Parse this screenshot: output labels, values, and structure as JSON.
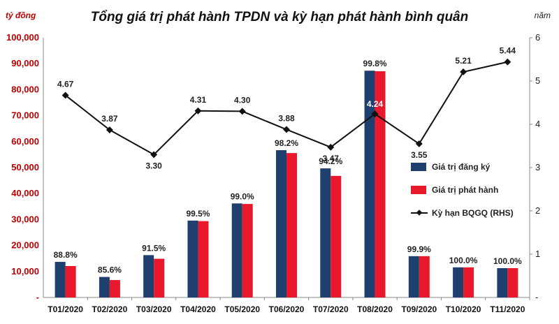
{
  "chart_data": {
    "type": "bar",
    "title": "Tổng giá trị phát hành TPDN và kỳ hạn phát hành bình quân",
    "y_left_unit": "tỷ đồng",
    "y_right_unit": "năm",
    "categories": [
      "T01/2020",
      "T02/2020",
      "T03/2020",
      "T04/2020",
      "T05/2020",
      "T06/2020",
      "T07/2020",
      "T08/2020",
      "T09/2020",
      "T10/2020",
      "T11/2020"
    ],
    "ylim_left": [
      0,
      100000
    ],
    "yticks_left": [
      "-",
      "10,000",
      "20,000",
      "30,000",
      "40,000",
      "50,000",
      "60,000",
      "70,000",
      "80,000",
      "90,000",
      "100,000"
    ],
    "ylim_right": [
      0,
      6
    ],
    "yticks_right": [
      "-",
      "1",
      "2",
      "3",
      "4",
      "5",
      "6"
    ],
    "series": [
      {
        "name": "Giá  trị đăng ký",
        "type": "bar",
        "axis": "left",
        "color": "#1f3f6e",
        "values": [
          13700,
          7900,
          16300,
          29600,
          36200,
          56700,
          49700,
          87300,
          15900,
          11600,
          11300
        ]
      },
      {
        "name": "Giá  trị phát hành",
        "type": "bar",
        "axis": "left",
        "color": "#e8192c",
        "values": [
          12100,
          6700,
          14900,
          29400,
          36000,
          55600,
          46800,
          87100,
          15900,
          11600,
          11300
        ]
      },
      {
        "name": "Kỳ hạn BQGQ  (RHS)",
        "type": "line",
        "axis": "right",
        "color": "#111111",
        "values": [
          4.67,
          3.87,
          3.3,
          4.31,
          4.3,
          3.88,
          3.47,
          4.24,
          3.55,
          5.21,
          5.44
        ]
      }
    ],
    "bar_labels": [
      "88.8%",
      "85.6%",
      "91.5%",
      "99.5%",
      "99.0%",
      "98.2%",
      "94.2%",
      "99.8%",
      "99.9%",
      "100.0%",
      "100.0%"
    ],
    "line_labels": [
      "4.67",
      "3.87",
      "3.30",
      "4.31",
      "4.30",
      "3.88",
      "3.47",
      "4.24",
      "3.55",
      "5.21",
      "5.44"
    ],
    "grid": false,
    "legend": "right"
  }
}
